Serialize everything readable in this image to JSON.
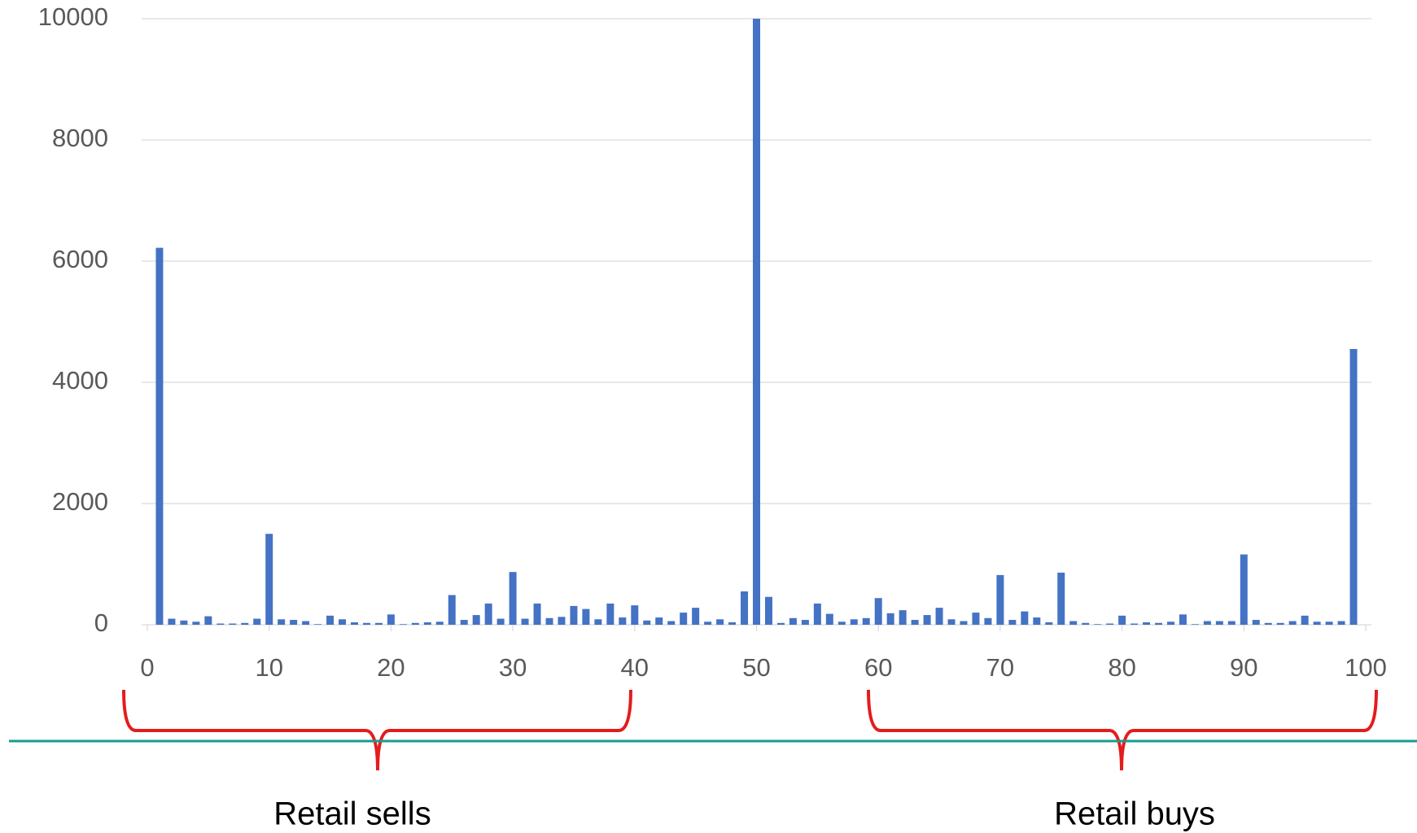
{
  "chart_data": {
    "type": "bar",
    "x": [
      0,
      1,
      2,
      3,
      4,
      5,
      6,
      7,
      8,
      9,
      10,
      11,
      12,
      13,
      14,
      15,
      16,
      17,
      18,
      19,
      20,
      21,
      22,
      23,
      24,
      25,
      26,
      27,
      28,
      29,
      30,
      31,
      32,
      33,
      34,
      35,
      36,
      37,
      38,
      39,
      40,
      41,
      42,
      43,
      44,
      45,
      46,
      47,
      48,
      49,
      50,
      51,
      52,
      53,
      54,
      55,
      56,
      57,
      58,
      59,
      60,
      61,
      62,
      63,
      64,
      65,
      66,
      67,
      68,
      69,
      70,
      71,
      72,
      73,
      74,
      75,
      76,
      77,
      78,
      79,
      80,
      81,
      82,
      83,
      84,
      85,
      86,
      87,
      88,
      89,
      90,
      91,
      92,
      93,
      94,
      95,
      96,
      97,
      98,
      99,
      100
    ],
    "values": [
      0,
      6220,
      100,
      70,
      50,
      140,
      20,
      20,
      30,
      100,
      1500,
      90,
      80,
      60,
      10,
      150,
      90,
      40,
      30,
      30,
      170,
      10,
      30,
      40,
      50,
      490,
      80,
      160,
      350,
      100,
      870,
      100,
      350,
      110,
      130,
      310,
      260,
      90,
      350,
      120,
      320,
      70,
      120,
      60,
      200,
      280,
      50,
      90,
      40,
      550,
      10000,
      460,
      30,
      110,
      80,
      350,
      180,
      50,
      90,
      110,
      440,
      190,
      240,
      80,
      160,
      280,
      90,
      60,
      200,
      110,
      820,
      80,
      220,
      120,
      40,
      860,
      60,
      30,
      10,
      20,
      150,
      20,
      40,
      30,
      50,
      170,
      10,
      60,
      60,
      60,
      1160,
      80,
      30,
      30,
      60,
      150,
      50,
      50,
      60,
      4550,
      0
    ],
    "color": "#4472c4",
    "xlim": [
      0,
      100
    ],
    "xticks": [
      0,
      10,
      20,
      30,
      40,
      50,
      60,
      70,
      80,
      90,
      100
    ],
    "ylim": [
      0,
      10000
    ],
    "yticks": [
      0,
      2000,
      4000,
      6000,
      8000,
      10000
    ],
    "grid": true,
    "annotations": [
      "Retail sells",
      "Retail buys"
    ]
  }
}
